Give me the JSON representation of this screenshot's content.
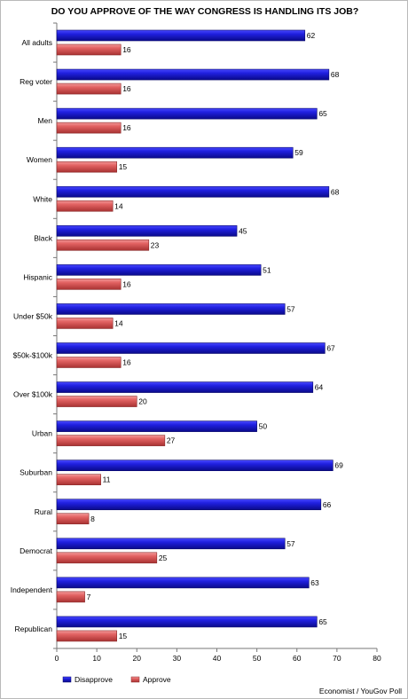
{
  "chart_data": {
    "type": "bar",
    "orientation": "horizontal",
    "title": "DO YOU APPROVE OF THE WAY CONGRESS IS HANDLING ITS JOB?",
    "categories": [
      "All adults",
      "Reg voter",
      "Men",
      "Women",
      "White",
      "Black",
      "Hispanic",
      "Under $50k",
      "$50k-$100k",
      "Over $100k",
      "Urban",
      "Suburban",
      "Rural",
      "Democrat",
      "Independent",
      "Republican"
    ],
    "series": [
      {
        "name": "Disapprove",
        "color": "#1414cc",
        "values": [
          62,
          68,
          65,
          59,
          68,
          45,
          51,
          57,
          67,
          64,
          50,
          69,
          66,
          57,
          63,
          65
        ]
      },
      {
        "name": "Approve",
        "color": "#e05a5a",
        "values": [
          16,
          16,
          16,
          15,
          14,
          23,
          16,
          14,
          16,
          20,
          27,
          11,
          8,
          25,
          7,
          15
        ]
      }
    ],
    "x_ticks": [
      0,
      10,
      20,
      30,
      40,
      50,
      60,
      70,
      80
    ],
    "xlim": [
      0,
      80
    ],
    "xlabel": "",
    "ylabel": "",
    "grid": false,
    "legend_position": "bottom-left",
    "source": "Economist / YouGov Poll"
  }
}
